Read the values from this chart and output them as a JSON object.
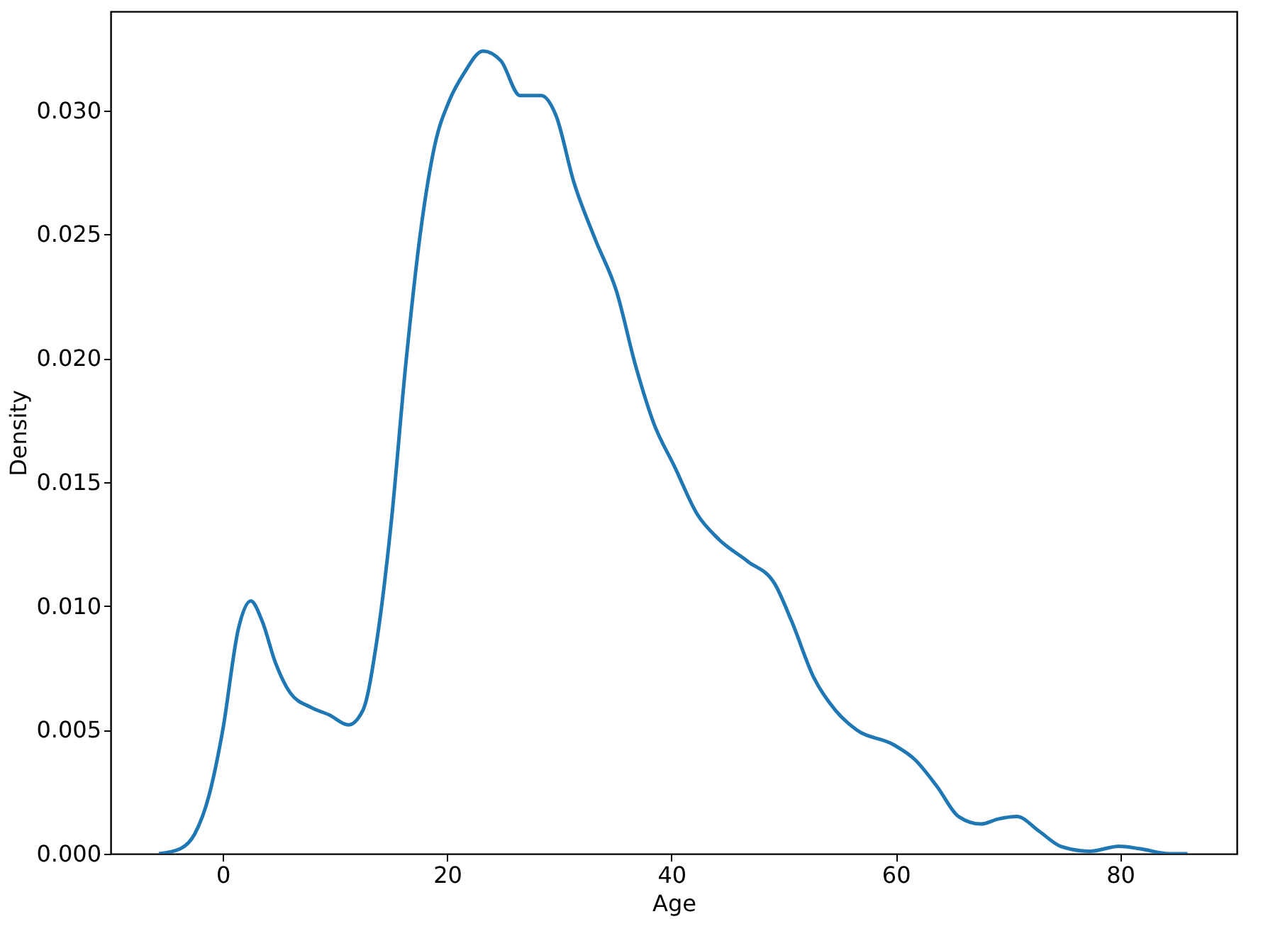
{
  "chart_data": {
    "type": "line",
    "xlabel": "Age",
    "ylabel": "Density",
    "xlim": [
      -10,
      90.4
    ],
    "ylim": [
      0,
      0.034
    ],
    "xticks": [
      0,
      20,
      40,
      60,
      80
    ],
    "yticks": [
      {
        "value": 0,
        "label": "0.000"
      },
      {
        "value": 0.005,
        "label": "0.005"
      },
      {
        "value": 0.01,
        "label": "0.010"
      },
      {
        "value": 0.015,
        "label": "0.015"
      },
      {
        "value": 0.02,
        "label": "0.020"
      },
      {
        "value": 0.025,
        "label": "0.025"
      },
      {
        "value": 0.03,
        "label": "0.030"
      }
    ],
    "grid": false,
    "marker": "none",
    "line_style": "solid",
    "x": [
      -5.7,
      -3.8,
      -2.5,
      -1.2,
      0,
      1.4,
      2.5,
      3.5,
      4.7,
      6,
      7.9,
      9.5,
      11.2,
      12.5,
      13.7,
      15,
      16.3,
      17.6,
      18.9,
      20.2,
      21.5,
      23.2,
      24.8,
      26.5,
      28.4,
      29.7,
      31.3,
      33.2,
      35.1,
      36.8,
      38.4,
      40.3,
      42.3,
      44.2,
      46.8,
      49.2,
      50.7,
      52.7,
      54.6,
      56.5,
      59.8,
      61.7,
      63.7,
      65.6,
      67.6,
      69.1,
      70.8,
      72.8,
      74.7,
      77.3,
      79.9,
      81.8,
      84.4,
      86
    ],
    "series": [
      {
        "color": "#1f77b4",
        "values": [
          0,
          0.0002,
          0.0008,
          0.0024,
          0.005,
          0.0091,
          0.0102,
          0.0094,
          0.0077,
          0.0065,
          0.0059,
          0.0056,
          0.0052,
          0.0058,
          0.0085,
          0.0133,
          0.0197,
          0.025,
          0.0286,
          0.0304,
          0.0315,
          0.0324,
          0.032,
          0.0306,
          0.0306,
          0.0298,
          0.0271,
          0.0248,
          0.0227,
          0.0197,
          0.0174,
          0.0156,
          0.0137,
          0.0127,
          0.0118,
          0.0109,
          0.0094,
          0.0071,
          0.0058,
          0.005,
          0.0044,
          0.0038,
          0.0027,
          0.0015,
          0.0012,
          0.0014,
          0.0015,
          0.0009,
          0.0003,
          0.0001,
          0.0003,
          0.0002,
          0,
          0
        ]
      }
    ]
  }
}
